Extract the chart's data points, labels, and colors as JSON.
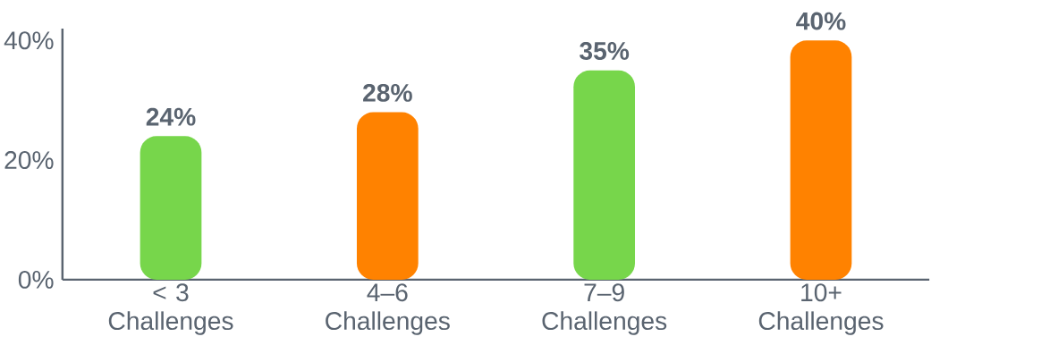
{
  "chart_data": {
    "type": "bar",
    "categories": [
      "< 3 Challenges",
      "4–6 Challenges",
      "7–9 Challenges",
      "10+ Challenges"
    ],
    "values": [
      24,
      28,
      35,
      40
    ],
    "colors": [
      "#77d64b",
      "#ff8200",
      "#77d64b",
      "#ff8200"
    ],
    "value_labels": [
      "24%",
      "28%",
      "35%",
      "40%"
    ],
    "ylim": [
      0,
      42
    ],
    "yticks": [
      {
        "value": 0,
        "label": "0%"
      },
      {
        "value": 20,
        "label": "20%"
      },
      {
        "value": 40,
        "label": "40%"
      }
    ]
  }
}
